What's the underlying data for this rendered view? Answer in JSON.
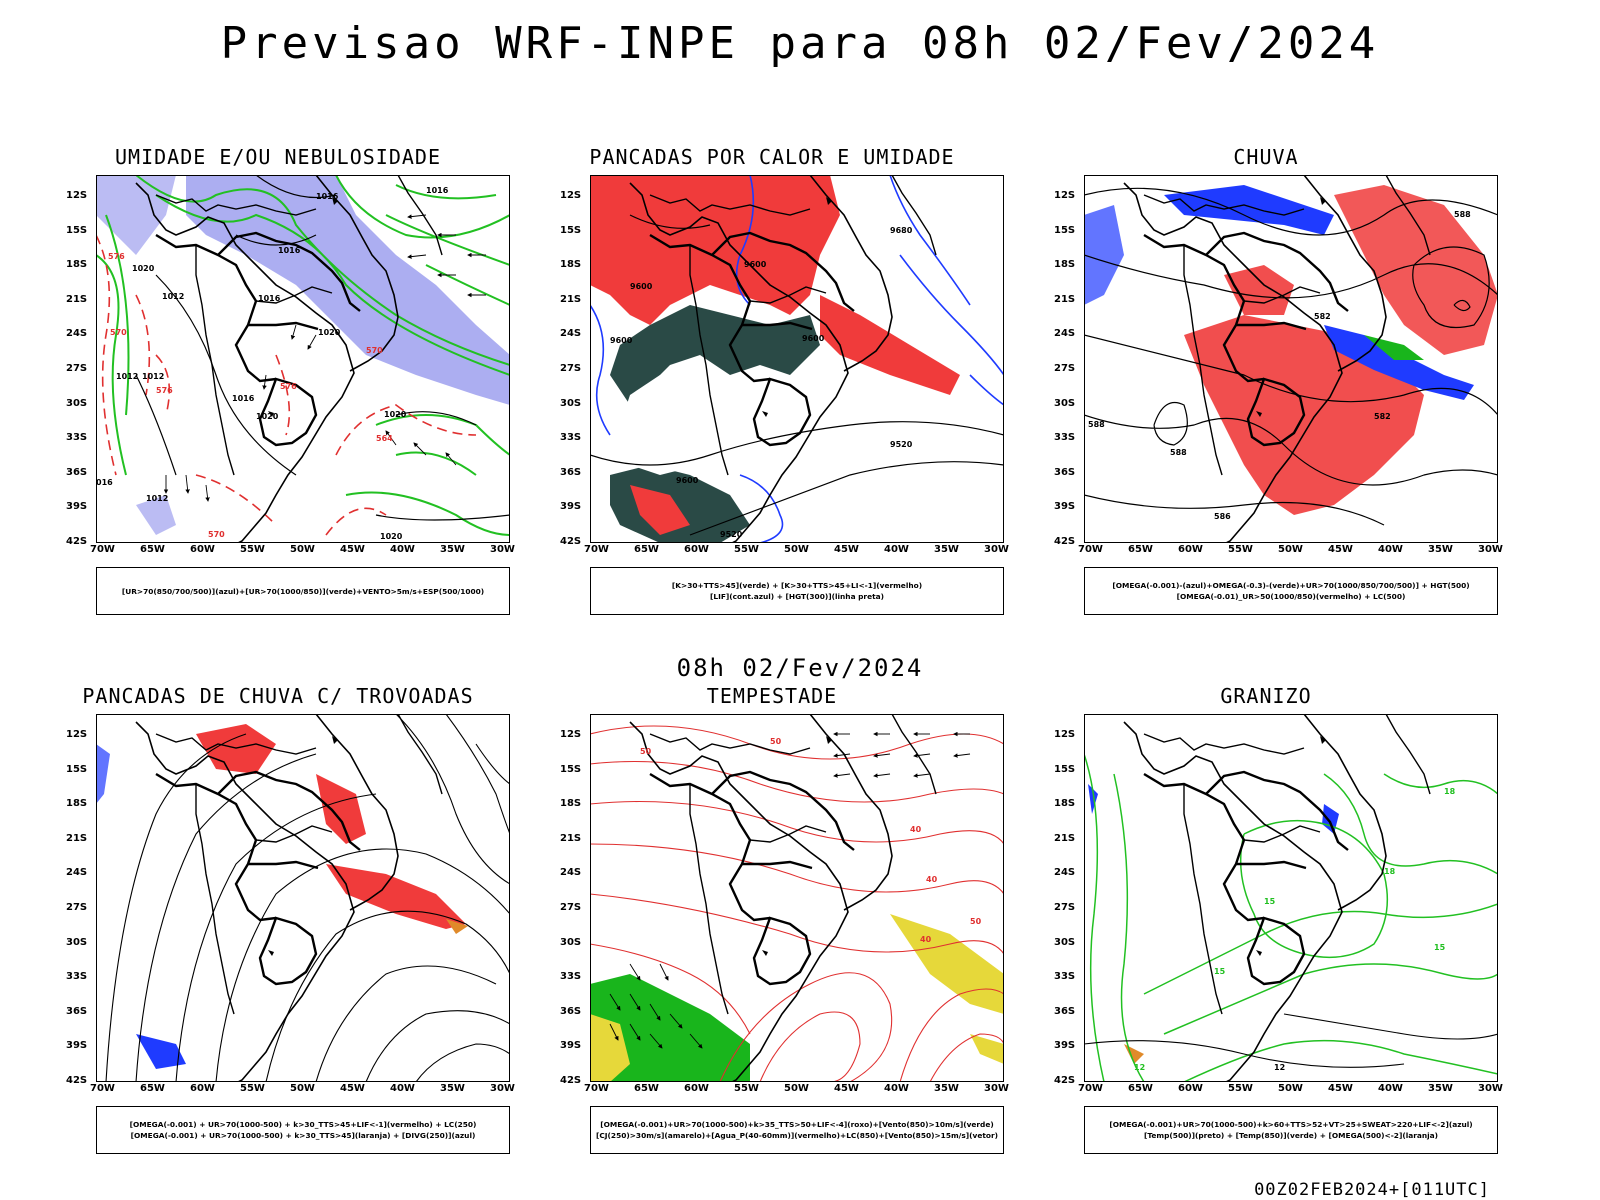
{
  "title": "Previsao WRF-INPE  para 08h 02/Fev/2024",
  "middle_label": "08h 02/Fev/2024",
  "footer": "00Z02FEB2024+[011UTC]",
  "lat_labels": [
    "12S",
    "15S",
    "18S",
    "21S",
    "24S",
    "27S",
    "30S",
    "33S",
    "36S",
    "39S",
    "42S"
  ],
  "lon_labels": [
    "70W",
    "65W",
    "60W",
    "55W",
    "50W",
    "45W",
    "40W",
    "35W",
    "30W"
  ],
  "colors": {
    "fill_red": "#f03b3b",
    "fill_blue": "#1f3bff",
    "fill_green": "#19b51c",
    "fill_lav": "#9ea0ee",
    "fill_dark": "#2a4a46",
    "fill_yellow": "#e6d83a",
    "fill_orange": "#e08a2a",
    "contour_black": "#000000",
    "contour_green": "#22c022",
    "contour_red": "#e03030"
  },
  "panels": [
    {
      "id": "p1",
      "title": "UMIDADE E/OU NEBULOSIDADE",
      "legend": [
        "[UR>70(850/700/500)](azul)+[UR>70(1000/850)](verde)+VENTO>5m/s+ESP(500/1000)"
      ],
      "contour_labels": [
        "1016",
        "1016",
        "1020",
        "1016",
        "1012",
        "1016",
        "1020",
        "1020",
        "1012",
        "1016",
        "1020",
        "576",
        "570",
        "576",
        "564",
        "570",
        "576",
        "570",
        "1012",
        "1020",
        "016",
        "1012"
      ]
    },
    {
      "id": "p2",
      "title": "PANCADAS POR CALOR E UMIDADE",
      "legend": [
        "[K>30+TTS>45](verde) + [K>30+TTS>45+LI<-1](vermelho)",
        "[LIF](cont.azul) + [HGT(300)](linha preta)"
      ],
      "contour_labels": [
        "9600",
        "9600",
        "9600",
        "9600",
        "9520",
        "9600",
        "9520",
        "9680"
      ]
    },
    {
      "id": "p3",
      "title": "CHUVA",
      "legend": [
        "[OMEGA(-0.001)-(azul)+OMEGA(-0.3)-(verde)+UR>70(1000/850/700/500)] + HGT(500)",
        "[OMEGA(-0.01)_UR>50(1000/850)(vermelho) + LC(500)"
      ],
      "contour_labels": [
        "588",
        "582",
        "588",
        "588",
        "586",
        "582"
      ]
    },
    {
      "id": "p4",
      "title": "PANCADAS DE CHUVA C/ TROVOADAS",
      "legend": [
        "[OMEGA(-0.001) + UR>70(1000-500) + k>30_TTS>45+LIF<-1](vermelho) + LC(250)",
        "[OMEGA(-0.001) + UR>70(1000-500) + k>30_TTS>45](laranja) + [DIVG(250)](azul)"
      ],
      "contour_labels": []
    },
    {
      "id": "p5",
      "title": "TEMPESTADE",
      "legend": [
        "[OMEGA(-0.001)+UR>70(1000-500)+k>35_TTS>50+LIF<-4](roxo)+[Vento(850)>10m/s](verde)",
        "[CJ(250)>30m/s](amarelo)+[Agua_P(40-60mm)](vermelho)+LC(850)+[Vento(850)>15m/s](vetor)"
      ],
      "contour_labels": [
        "50",
        "40",
        "50",
        "40",
        "50",
        "40"
      ]
    },
    {
      "id": "p6",
      "title": "GRANIZO",
      "legend": [
        "[OMEGA(-0.001)+UR>70(1000-500)+k>60+TTS>52+VT>25+SWEAT>220+LIF<-2](azul)",
        "[Temp(500)](preto) + [Temp(850)](verde) + [OMEGA(500)<-2](laranja)"
      ],
      "contour_labels": [
        "15",
        "15",
        "18",
        "12",
        "18",
        "15",
        "12"
      ]
    }
  ]
}
